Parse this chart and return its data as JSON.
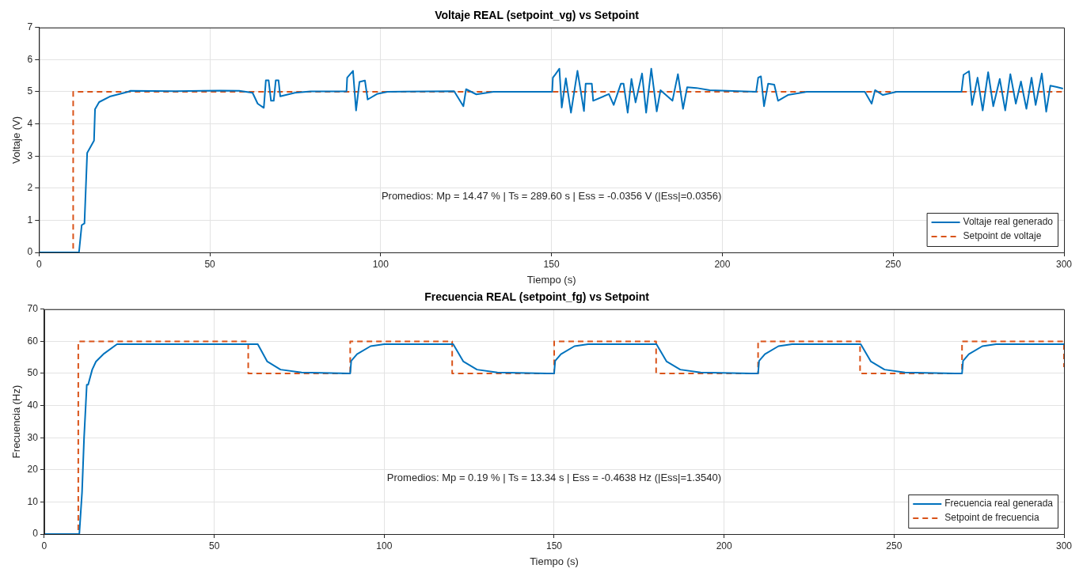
{
  "chart_data": [
    {
      "type": "line",
      "title": "Voltaje REAL (setpoint_vg) vs Setpoint",
      "xlabel": "Tiempo (s)",
      "ylabel": "Voltaje (V)",
      "xlim": [
        0,
        300
      ],
      "xticks": [
        0,
        50,
        100,
        150,
        200,
        250,
        300
      ],
      "ylim": [
        0,
        7
      ],
      "yticks": [
        0,
        1,
        2,
        3,
        4,
        5,
        6,
        7
      ],
      "grid": true,
      "legend": "bottom right",
      "annotations": [
        "Promedios: Mp = 14.47 % | Ts = 289.60 s | Ess = -0.0356 V (|Ess|=0.0356)"
      ],
      "series": [
        {
          "name": "Voltaje real generado",
          "color": "#0072bd",
          "line_style": "solid",
          "x": [
            0,
            11.7,
            12.5,
            13.3,
            14.1,
            16.1,
            16.4,
            17.6,
            20.7,
            26.1,
            26.8,
            40,
            53,
            58.6,
            62.5,
            64,
            65.8,
            66.4,
            67.2,
            67.9,
            68.7,
            69.3,
            70.1,
            70.6,
            74.9,
            79.5,
            90,
            90.2,
            91.9,
            92.8,
            93.8,
            95.4,
            96.2,
            98.9,
            102,
            121.5,
            124.2,
            125,
            128,
            133,
            150.2,
            150.4,
            151.2,
            152.3,
            153,
            154.2,
            155.7,
            157.6,
            159.5,
            160,
            161.8,
            162.2,
            166.8,
            168.2,
            170.3,
            171.1,
            172.3,
            173.4,
            174.6,
            176.5,
            177.7,
            179.2,
            180.8,
            181.9,
            185.4,
            187,
            188.5,
            189.7,
            192.4,
            196.3,
            204.8,
            209.9,
            210.5,
            211.3,
            212.2,
            213.4,
            215.2,
            216.3,
            219.2,
            224.7,
            241.7,
            243.7,
            244.7,
            247,
            251,
            270,
            270.6,
            272.2,
            273.1,
            274.7,
            276.2,
            277.8,
            279.3,
            281.2,
            282.8,
            284.3,
            285.9,
            287.4,
            289,
            290.5,
            291.7,
            293.5,
            294.8,
            296,
            297.9,
            299.7
          ],
          "values": [
            0,
            0,
            0.85,
            0.9,
            3.1,
            3.48,
            4.46,
            4.68,
            4.85,
            5.0,
            5.03,
            5.02,
            5.04,
            5.03,
            4.97,
            4.63,
            4.5,
            5.36,
            5.36,
            4.72,
            4.72,
            5.36,
            5.36,
            4.86,
            4.97,
            5.01,
            5.01,
            5.44,
            5.65,
            4.42,
            5.31,
            5.35,
            4.76,
            4.93,
            5.0,
            5.02,
            4.55,
            5.08,
            4.92,
            5.0,
            5.0,
            5.44,
            5.55,
            5.72,
            4.51,
            5.42,
            4.35,
            5.65,
            4.4,
            5.25,
            5.25,
            4.72,
            4.93,
            4.59,
            5.25,
            5.25,
            4.35,
            5.4,
            4.67,
            5.57,
            4.35,
            5.72,
            4.39,
            5.05,
            4.72,
            5.55,
            4.47,
            5.14,
            5.12,
            5.05,
            5.02,
            5.0,
            5.44,
            5.48,
            4.55,
            5.25,
            5.22,
            4.72,
            4.9,
            5.0,
            5.0,
            4.63,
            5.05,
            4.9,
            5.0,
            5.0,
            5.53,
            5.64,
            4.59,
            5.44,
            4.42,
            5.61,
            4.55,
            5.4,
            4.42,
            5.55,
            4.63,
            5.32,
            4.47,
            5.44,
            4.59,
            5.57,
            4.38,
            5.19,
            5.15,
            5.1
          ]
        },
        {
          "name": "Setpoint de voltaje",
          "color": "#d95319",
          "line_style": "dashed",
          "type": "step",
          "x": [
            0,
            10,
            300
          ],
          "values": [
            0,
            5,
            5
          ]
        }
      ]
    },
    {
      "type": "line",
      "title": "Frecuencia REAL (setpoint_fg) vs Setpoint",
      "xlabel": "Tiempo (s)",
      "ylabel": "Frecuencia (Hz)",
      "xlim": [
        0,
        300
      ],
      "xticks": [
        0,
        50,
        100,
        150,
        200,
        250,
        300
      ],
      "ylim": [
        0,
        70
      ],
      "yticks": [
        0,
        10,
        20,
        30,
        40,
        50,
        60,
        70
      ],
      "grid": true,
      "legend": "bottom right",
      "annotations": [
        "Promedios: Mp = 0.19 % | Ts = 13.34 s | Ess = -0.4638 Hz (|Ess|=1.3540)"
      ],
      "series": [
        {
          "name": "Frecuencia real generada",
          "color": "#0072bd",
          "line_style": "solid",
          "x": [
            0,
            10.3,
            11.1,
            11.7,
            12.5,
            12.9,
            14.1,
            15.2,
            17.6,
            21.4,
            62.8,
            65.6,
            69.5,
            75.7,
            90,
            90.3,
            92,
            96,
            100,
            120.3,
            123.3,
            127.3,
            133.3,
            148,
            150,
            150.3,
            152,
            156,
            160,
            180.1,
            183.1,
            187.1,
            193.1,
            208,
            210,
            210.3,
            212,
            216,
            220,
            240.2,
            243.2,
            247.2,
            253.2,
            268,
            270,
            270.3,
            272,
            276,
            280,
            300
          ],
          "values": [
            0,
            0,
            12.9,
            29.9,
            46.5,
            46.5,
            51.2,
            53.7,
            56.2,
            59.1,
            59.1,
            53.7,
            51.2,
            50.3,
            50,
            53.9,
            56,
            58.5,
            59.1,
            59.1,
            53.7,
            51.2,
            50.3,
            50,
            50,
            53.9,
            56,
            58.5,
            59.1,
            59.1,
            53.7,
            51.2,
            50.3,
            50,
            50,
            53.9,
            56,
            58.5,
            59.1,
            59.1,
            53.7,
            51.2,
            50.3,
            50,
            50,
            53.9,
            56,
            58.5,
            59.1,
            59.1
          ]
        },
        {
          "name": "Setpoint de frecuencia",
          "color": "#d95319",
          "line_style": "dashed",
          "type": "step",
          "x": [
            0,
            10,
            60,
            90,
            120,
            150,
            180,
            210,
            240,
            270,
            300
          ],
          "values": [
            0,
            60,
            50,
            60,
            50,
            60,
            50,
            60,
            50,
            60,
            52
          ]
        }
      ]
    }
  ]
}
